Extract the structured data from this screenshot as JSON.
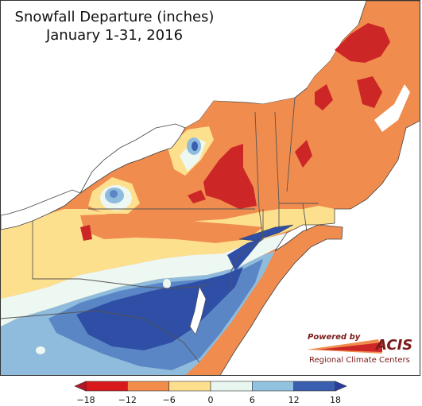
{
  "title": {
    "line1": "Snowfall Departure (inches)",
    "line2": "January 1-31, 2016"
  },
  "logo": {
    "powered_by": "Powered by",
    "brand": "ACIS",
    "subtitle": "Regional Climate Centers"
  },
  "legend": {
    "ticks": [
      "−18",
      "−12",
      "−6",
      "0",
      "6",
      "12",
      "18"
    ],
    "bins": [
      {
        "range": [
          -18,
          -12
        ],
        "color": "#d7191c"
      },
      {
        "range": [
          -12,
          -6
        ],
        "color": "#f28c4a"
      },
      {
        "range": [
          -6,
          0
        ],
        "color": "#fde08e"
      },
      {
        "range": [
          0,
          6
        ],
        "color": "#e8f6f0"
      },
      {
        "range": [
          6,
          12
        ],
        "color": "#91c2e0"
      },
      {
        "range": [
          12,
          18
        ],
        "color": "#3a5fb0"
      }
    ],
    "under_color": "#b2182b",
    "over_color": "#2c3e9a"
  },
  "colors": {
    "deep_red": "#cc2626",
    "orange": "#f08c4e",
    "light_orange": "#f7ad6a",
    "yellow": "#fde08e",
    "pale": "#eef8f2",
    "light_blue": "#8fbcdc",
    "mid_blue": "#5a86c6",
    "dark_blue": "#2f4ea5",
    "boundary": "#555555",
    "water": "#ffffff"
  }
}
